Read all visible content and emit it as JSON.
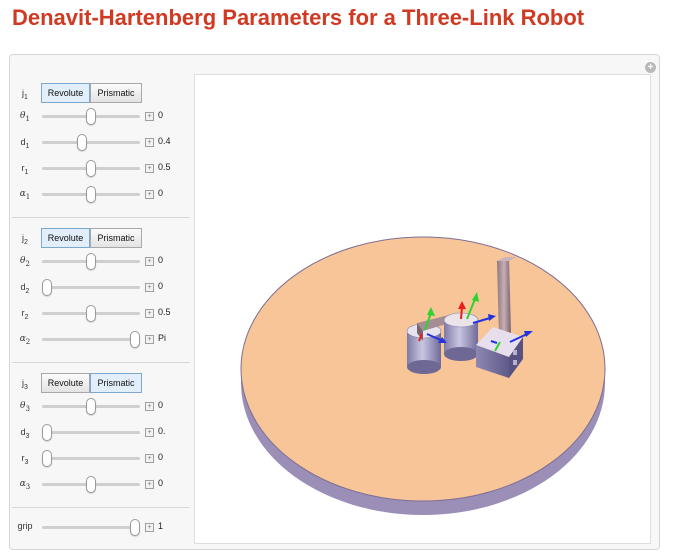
{
  "title": "Denavit-Hartenberg Parameters for a Three-Link Robot",
  "corner_button": "+",
  "joints": [
    {
      "joint_label": "j",
      "joint_sub": "1",
      "type_options": [
        "Revolute",
        "Prismatic"
      ],
      "selected_type": "Revolute",
      "sliders": [
        {
          "symbol": "θ",
          "sub": "1",
          "value": "0",
          "fraction": 0.5
        },
        {
          "symbol": "d",
          "sub": "1",
          "value": "0.4",
          "fraction": 0.4
        },
        {
          "symbol": "r",
          "sub": "1",
          "value": "0.5",
          "fraction": 0.5
        },
        {
          "symbol": "α",
          "sub": "1",
          "value": "0",
          "fraction": 0.5
        }
      ]
    },
    {
      "joint_label": "j",
      "joint_sub": "2",
      "type_options": [
        "Revolute",
        "Prismatic"
      ],
      "selected_type": "Revolute",
      "sliders": [
        {
          "symbol": "θ",
          "sub": "2",
          "value": "0",
          "fraction": 0.5
        },
        {
          "symbol": "d",
          "sub": "2",
          "value": "0",
          "fraction": 0.0
        },
        {
          "symbol": "r",
          "sub": "2",
          "value": "0.5",
          "fraction": 0.5
        },
        {
          "symbol": "α",
          "sub": "2",
          "value": "Pi",
          "fraction": 1.0
        }
      ]
    },
    {
      "joint_label": "j",
      "joint_sub": "3",
      "type_options": [
        "Revolute",
        "Prismatic"
      ],
      "selected_type": "Prismatic",
      "sliders": [
        {
          "symbol": "θ",
          "sub": "3",
          "value": "0",
          "fraction": 0.5
        },
        {
          "symbol": "d",
          "sub": "3",
          "value": "0.",
          "fraction": 0.0
        },
        {
          "symbol": "r",
          "sub": "3",
          "value": "0",
          "fraction": 0.0
        },
        {
          "symbol": "α",
          "sub": "3",
          "value": "0",
          "fraction": 0.5
        }
      ]
    }
  ],
  "grip": {
    "label": "grip",
    "value": "1",
    "fraction": 1.0
  },
  "scene": {
    "base_top_color": "#f7c597",
    "base_side_color": "#9b8fb8",
    "arrow_red": "#e8201c",
    "arrow_green": "#2ed32e",
    "arrow_blue": "#2233dd"
  }
}
